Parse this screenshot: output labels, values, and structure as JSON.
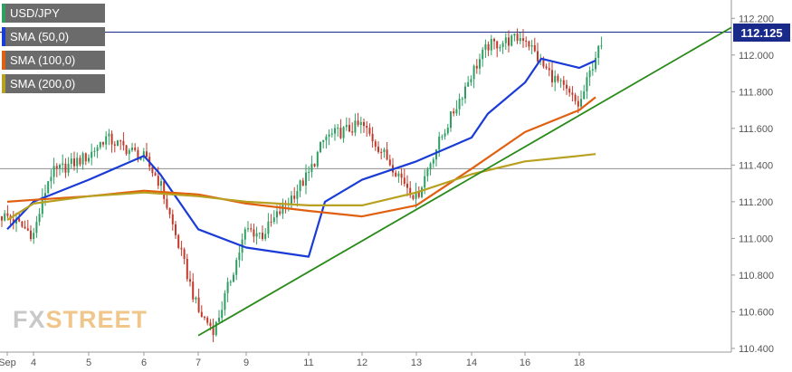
{
  "legend": [
    {
      "label": "USD/JPY",
      "color": "#2e9e62"
    },
    {
      "label": "SMA (50,0)",
      "color": "#1a3bd6"
    },
    {
      "label": "SMA (100,0)",
      "color": "#e06010"
    },
    {
      "label": "SMA (200,0)",
      "color": "#b8a020"
    }
  ],
  "price_tag": "112.125",
  "watermark": {
    "part1": "FX",
    "part2": "STREET"
  },
  "chart_data": {
    "type": "line",
    "symbol": "USD/JPY",
    "ylim": [
      110.38,
      112.3
    ],
    "y_ticks": [
      "112.200",
      "112.000",
      "111.800",
      "111.600",
      "111.400",
      "111.200",
      "111.000",
      "110.800",
      "110.600",
      "110.400"
    ],
    "x_ticks": [
      "Sep",
      "4",
      "5",
      "6",
      "7",
      "9",
      "11",
      "12",
      "13",
      "14",
      "16",
      "18"
    ],
    "current_price": 112.125,
    "reference_level": 111.38,
    "grid": false,
    "legend_position": "top-left",
    "price_path": [
      [
        "Sep",
        111.12
      ],
      [
        "4",
        111.02
      ],
      [
        "4",
        111.35
      ],
      [
        "5",
        111.45
      ],
      [
        "5",
        111.55
      ],
      [
        "6",
        111.44
      ],
      [
        "6",
        111.3
      ],
      [
        "7",
        110.6
      ],
      [
        "7",
        110.5
      ],
      [
        "9",
        111.05
      ],
      [
        "9",
        111.02
      ],
      [
        "11",
        111.35
      ],
      [
        "11",
        111.55
      ],
      [
        "12",
        111.62
      ],
      [
        "12",
        111.5
      ],
      [
        "13",
        111.22
      ],
      [
        "13",
        111.45
      ],
      [
        "14",
        111.9
      ],
      [
        "14",
        112.05
      ],
      [
        "16",
        112.1
      ],
      [
        "16",
        111.95
      ],
      [
        "18",
        111.72
      ],
      [
        "18",
        112.0
      ],
      [
        "18",
        112.12
      ]
    ],
    "series": [
      {
        "name": "SMA (50,0)",
        "color": "#1a3bd6",
        "points": [
          [
            "Sep",
            111.05
          ],
          [
            "4",
            111.2
          ],
          [
            "5",
            111.32
          ],
          [
            "6",
            111.45
          ],
          [
            "6",
            111.35
          ],
          [
            "7",
            111.05
          ],
          [
            "9",
            110.95
          ],
          [
            "11",
            110.9
          ],
          [
            "11",
            111.2
          ],
          [
            "12",
            111.32
          ],
          [
            "13",
            111.42
          ],
          [
            "14",
            111.55
          ],
          [
            "14",
            111.68
          ],
          [
            "16",
            111.85
          ],
          [
            "16",
            111.98
          ],
          [
            "18",
            111.93
          ],
          [
            "18",
            111.97
          ]
        ]
      },
      {
        "name": "SMA (100,0)",
        "color": "#e06010",
        "points": [
          [
            "Sep",
            111.2
          ],
          [
            "4",
            111.21
          ],
          [
            "5",
            111.23
          ],
          [
            "6",
            111.26
          ],
          [
            "7",
            111.24
          ],
          [
            "9",
            111.19
          ],
          [
            "11",
            111.15
          ],
          [
            "12",
            111.12
          ],
          [
            "13",
            111.18
          ],
          [
            "14",
            111.38
          ],
          [
            "16",
            111.58
          ],
          [
            "18",
            111.7
          ],
          [
            "18",
            111.77
          ]
        ]
      },
      {
        "name": "SMA (200,0)",
        "color": "#b8a020",
        "points": [
          [
            "Sep",
            111.1
          ],
          [
            "4",
            111.19
          ],
          [
            "5",
            111.23
          ],
          [
            "6",
            111.25
          ],
          [
            "7",
            111.23
          ],
          [
            "9",
            111.2
          ],
          [
            "11",
            111.18
          ],
          [
            "12",
            111.18
          ],
          [
            "13",
            111.25
          ],
          [
            "14",
            111.35
          ],
          [
            "16",
            111.42
          ],
          [
            "18",
            111.45
          ],
          [
            "18",
            111.46
          ]
        ]
      }
    ],
    "trendline": {
      "color": "#2a8a1a",
      "from": [
        "7",
        110.47
      ],
      "to": [
        "18",
        112.15
      ]
    }
  }
}
